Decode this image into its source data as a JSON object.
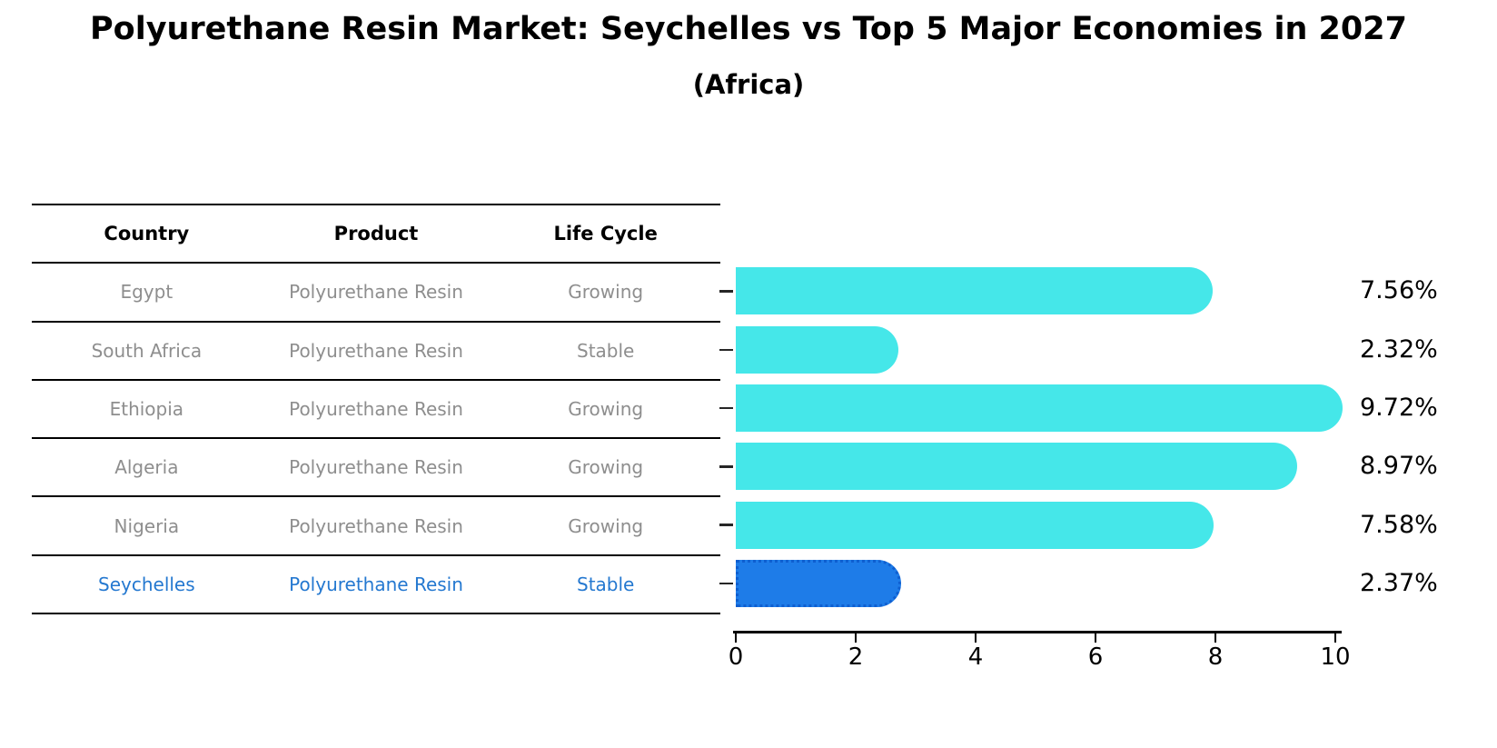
{
  "title": "Polyurethane Resin Market: Seychelles vs Top 5 Major Economies in 2027",
  "subtitle": "(Africa)",
  "table": {
    "headers": [
      "Country",
      "Product",
      "Life Cycle"
    ],
    "rows": [
      {
        "country": "Egypt",
        "product": "Polyurethane Resin",
        "life_cycle": "Growing",
        "highlight": false
      },
      {
        "country": "South Africa",
        "product": "Polyurethane Resin",
        "life_cycle": "Stable",
        "highlight": false
      },
      {
        "country": "Ethiopia",
        "product": "Polyurethane Resin",
        "life_cycle": "Growing",
        "highlight": false
      },
      {
        "country": "Algeria",
        "product": "Polyurethane Resin",
        "life_cycle": "Growing",
        "highlight": false
      },
      {
        "country": "Nigeria",
        "product": "Polyurethane Resin",
        "life_cycle": "Growing",
        "highlight": false
      },
      {
        "country": "Seychelles",
        "product": "Polyurethane Resin",
        "life_cycle": "Stable",
        "highlight": true
      }
    ]
  },
  "chart_data": {
    "type": "bar",
    "orientation": "horizontal",
    "title": "Polyurethane Resin Market: Seychelles vs Top 5 Major Economies in 2027",
    "subtitle": "(Africa)",
    "categories": [
      "Egypt",
      "South Africa",
      "Ethiopia",
      "Algeria",
      "Nigeria",
      "Seychelles"
    ],
    "values": [
      7.56,
      2.32,
      9.72,
      8.97,
      7.58,
      2.37
    ],
    "value_labels": [
      "7.56%",
      "2.32%",
      "9.72%",
      "8.97%",
      "7.58%",
      "2.37%"
    ],
    "xlabel": "",
    "ylabel": "",
    "xlim": [
      0,
      10
    ],
    "x_ticks": [
      0,
      2,
      4,
      6,
      8,
      10
    ],
    "grid": false,
    "legend": false,
    "highlight_category": "Seychelles"
  },
  "colors": {
    "bar_cyan": "#45e7e9",
    "bar_highlight": "#1e7ce8",
    "bar_highlight_border": "#0f5fd0",
    "table_text_gray": "#8e8e8e",
    "highlight_text_blue": "#2478d0",
    "axis_black": "#000000"
  }
}
